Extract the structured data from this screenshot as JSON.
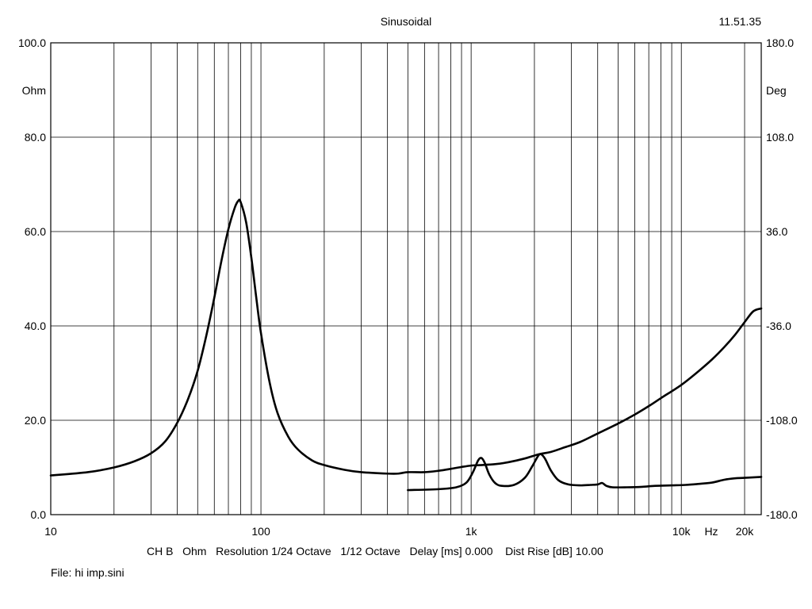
{
  "header": {
    "title": "Sinusoidal",
    "time": "11.51.35"
  },
  "footer": {
    "info_line": "CH B   Ohm   Resolution 1/24 Octave   1/12 Octave   Delay [ms] 0.000    Dist Rise [dB] 10.00",
    "file_label": "File: hi imp.sini"
  },
  "chart_data": {
    "type": "line",
    "title": "Sinusoidal",
    "x_scale": "log",
    "xlim": [
      10,
      24000
    ],
    "xlabel": "Hz",
    "x_ticks": [
      {
        "value": 10,
        "label": "10"
      },
      {
        "value": 100,
        "label": "100"
      },
      {
        "value": 1000,
        "label": "1k"
      },
      {
        "value": 10000,
        "label": "10k"
      },
      {
        "value": 20000,
        "label": "20k"
      }
    ],
    "y_left": {
      "label": "Ohm",
      "ylim": [
        0,
        100
      ],
      "ticks": [
        {
          "value": 0,
          "label": "0.0"
        },
        {
          "value": 20,
          "label": "20.0"
        },
        {
          "value": 40,
          "label": "40.0"
        },
        {
          "value": 60,
          "label": "60.0"
        },
        {
          "value": 80,
          "label": "80.0"
        },
        {
          "value": 100,
          "label": "100.0"
        }
      ]
    },
    "y_right": {
      "label": "Deg",
      "ylim": [
        -180,
        180
      ],
      "ticks": [
        {
          "value": -180,
          "label": "-180.0"
        },
        {
          "value": -108,
          "label": "-108.0"
        },
        {
          "value": -36,
          "label": "-36.0"
        },
        {
          "value": 36,
          "label": "36.0"
        },
        {
          "value": 108,
          "label": "108.0"
        },
        {
          "value": 180,
          "label": "180.0"
        }
      ]
    },
    "grid": true,
    "series": [
      {
        "axis": "left",
        "points": [
          [
            10,
            8.3
          ],
          [
            15,
            9.0
          ],
          [
            20,
            10.0
          ],
          [
            25,
            11.3
          ],
          [
            30,
            13.0
          ],
          [
            35,
            15.5
          ],
          [
            40,
            19.5
          ],
          [
            45,
            24.5
          ],
          [
            50,
            30.5
          ],
          [
            55,
            38.0
          ],
          [
            60,
            46.0
          ],
          [
            65,
            54.0
          ],
          [
            70,
            60.5
          ],
          [
            75,
            65.0
          ],
          [
            78,
            66.5
          ],
          [
            80,
            66.3
          ],
          [
            85,
            62.0
          ],
          [
            90,
            54.5
          ],
          [
            95,
            46.0
          ],
          [
            100,
            38.5
          ],
          [
            110,
            28.0
          ],
          [
            120,
            21.5
          ],
          [
            135,
            16.5
          ],
          [
            150,
            13.8
          ],
          [
            175,
            11.5
          ],
          [
            200,
            10.5
          ],
          [
            250,
            9.5
          ],
          [
            300,
            9.0
          ],
          [
            400,
            8.7
          ],
          [
            450,
            8.7
          ],
          [
            500,
            9.0
          ],
          [
            600,
            9.0
          ],
          [
            700,
            9.3
          ],
          [
            800,
            9.7
          ],
          [
            900,
            10.1
          ],
          [
            1000,
            10.4
          ],
          [
            1100,
            10.5
          ],
          [
            1300,
            10.7
          ],
          [
            1500,
            11.1
          ],
          [
            1800,
            11.9
          ],
          [
            2100,
            12.8
          ],
          [
            2400,
            13.3
          ],
          [
            2800,
            14.3
          ],
          [
            3300,
            15.4
          ],
          [
            4000,
            17.2
          ],
          [
            5000,
            19.3
          ],
          [
            6000,
            21.2
          ],
          [
            7000,
            23.0
          ],
          [
            8000,
            24.7
          ],
          [
            10000,
            27.5
          ],
          [
            12000,
            30.3
          ],
          [
            14000,
            32.9
          ],
          [
            16000,
            35.5
          ],
          [
            18000,
            38.1
          ],
          [
            20000,
            40.8
          ],
          [
            22000,
            43.1
          ],
          [
            24000,
            43.7
          ]
        ]
      },
      {
        "axis": "left",
        "points": [
          [
            500,
            5.2
          ],
          [
            700,
            5.4
          ],
          [
            850,
            5.8
          ],
          [
            950,
            6.8
          ],
          [
            1020,
            9.0
          ],
          [
            1080,
            11.5
          ],
          [
            1120,
            12.0
          ],
          [
            1160,
            11.0
          ],
          [
            1220,
            8.5
          ],
          [
            1300,
            6.7
          ],
          [
            1400,
            6.1
          ],
          [
            1600,
            6.3
          ],
          [
            1800,
            7.8
          ],
          [
            1950,
            10.2
          ],
          [
            2080,
            12.4
          ],
          [
            2150,
            12.8
          ],
          [
            2250,
            11.8
          ],
          [
            2400,
            9.3
          ],
          [
            2600,
            7.3
          ],
          [
            2900,
            6.4
          ],
          [
            3300,
            6.2
          ],
          [
            3700,
            6.3
          ],
          [
            4000,
            6.4
          ],
          [
            4200,
            6.7
          ],
          [
            4400,
            6.1
          ],
          [
            4700,
            5.8
          ],
          [
            5500,
            5.8
          ],
          [
            6500,
            5.9
          ],
          [
            7500,
            6.1
          ],
          [
            9000,
            6.2
          ],
          [
            10500,
            6.3
          ],
          [
            12000,
            6.5
          ],
          [
            14000,
            6.8
          ],
          [
            16000,
            7.4
          ],
          [
            18000,
            7.7
          ],
          [
            20000,
            7.8
          ],
          [
            24000,
            8.0
          ]
        ]
      }
    ]
  }
}
